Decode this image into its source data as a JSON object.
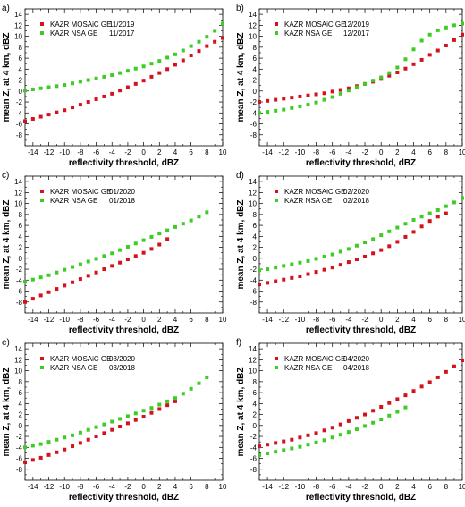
{
  "chart_data": [
    {
      "type": "scatter",
      "panel_label": "a)",
      "xlabel": "reflectivity threshold, dBZ",
      "ylabel": "mean Z, at 4 km, dBZ",
      "xlim": [
        -15,
        10
      ],
      "ylim": [
        -10,
        15
      ],
      "xticks": [
        "-14",
        "-12",
        "-10",
        "-8",
        "-6",
        "-4",
        "-2",
        "0",
        "2",
        "4",
        "6",
        "8",
        "10"
      ],
      "yticks": [
        "-8",
        "-6",
        "-4",
        "-2",
        "0",
        "2",
        "4",
        "6",
        "8",
        "10",
        "12",
        "14"
      ],
      "legend_position": "top-left",
      "series": [
        {
          "name": "KAZR MOSAiC GE",
          "period": "11/2019",
          "color": "#d4121d",
          "x": [
            -15,
            -14,
            -13,
            -12,
            -11,
            -10,
            -9,
            -8,
            -7,
            -6,
            -5,
            -4,
            -3,
            -2,
            -1,
            0,
            1,
            2,
            3,
            4,
            5,
            6,
            7,
            8,
            9,
            10
          ],
          "y": [
            -5.5,
            -5.1,
            -4.7,
            -4.3,
            -3.9,
            -3.5,
            -3.0,
            -2.5,
            -2.0,
            -1.5,
            -1.0,
            -0.5,
            0.1,
            0.7,
            1.3,
            1.9,
            2.6,
            3.3,
            4.0,
            4.8,
            5.6,
            6.5,
            7.3,
            8.2,
            9.0,
            9.7
          ]
        },
        {
          "name": "KAZR NSA  GE",
          "period": "11/2017",
          "color": "#3ccd24",
          "x": [
            -15,
            -14,
            -13,
            -12,
            -11,
            -10,
            -9,
            -8,
            -7,
            -6,
            -5,
            -4,
            -3,
            -2,
            -1,
            0,
            1,
            2,
            3,
            4,
            5,
            6,
            7,
            8,
            9,
            10
          ],
          "y": [
            0.1,
            0.3,
            0.5,
            0.7,
            0.9,
            1.1,
            1.4,
            1.7,
            2.0,
            2.3,
            2.6,
            2.9,
            3.3,
            3.7,
            4.1,
            4.5,
            5.0,
            5.5,
            6.1,
            6.7,
            7.4,
            8.2,
            9.0,
            9.9,
            11.0,
            12.3
          ]
        }
      ]
    },
    {
      "type": "scatter",
      "panel_label": "b)",
      "xlabel": "reflectivity threshold, dBZ",
      "ylabel": "mean Z, at 4 km, dBZ",
      "xlim": [
        -15,
        10
      ],
      "ylim": [
        -10,
        15
      ],
      "xticks": [
        "-14",
        "-12",
        "-10",
        "-8",
        "-6",
        "-4",
        "-2",
        "0",
        "2",
        "4",
        "6",
        "8",
        "10"
      ],
      "yticks": [
        "-8",
        "-6",
        "-4",
        "-2",
        "0",
        "2",
        "4",
        "6",
        "8",
        "10",
        "12",
        "14"
      ],
      "legend_position": "top-left",
      "series": [
        {
          "name": "KAZR MOSAiC GE",
          "period": "12/2019",
          "color": "#d4121d",
          "x": [
            -15,
            -14,
            -13,
            -12,
            -11,
            -10,
            -9,
            -8,
            -7,
            -6,
            -5,
            -4,
            -3,
            -2,
            -1,
            0,
            1,
            2,
            3,
            4,
            5,
            6,
            7,
            8,
            9,
            10
          ],
          "y": [
            -2.0,
            -1.8,
            -1.6,
            -1.4,
            -1.2,
            -1.0,
            -0.8,
            -0.6,
            -0.4,
            -0.1,
            0.2,
            0.5,
            0.9,
            1.3,
            1.7,
            2.2,
            2.8,
            3.4,
            4.1,
            4.9,
            5.7,
            6.6,
            7.4,
            8.3,
            9.3,
            10.3
          ]
        },
        {
          "name": "KAZR NSA  GE",
          "period": "12/2017",
          "color": "#3ccd24",
          "x": [
            -15,
            -14,
            -13,
            -12,
            -11,
            -10,
            -9,
            -8,
            -7,
            -6,
            -5,
            -4,
            -3,
            -2,
            -1,
            0,
            1,
            2,
            3,
            4,
            5,
            6,
            7,
            8,
            9,
            10
          ],
          "y": [
            -4.0,
            -3.8,
            -3.6,
            -3.4,
            -3.1,
            -2.8,
            -2.5,
            -2.1,
            -1.6,
            -1.1,
            -0.5,
            0.1,
            0.7,
            1.3,
            1.9,
            2.5,
            3.3,
            4.3,
            5.8,
            7.6,
            9.2,
            10.3,
            11.1,
            11.6,
            12.0,
            12.3
          ]
        }
      ]
    },
    {
      "type": "scatter",
      "panel_label": "c)",
      "xlabel": "reflectivity threshold, dBZ",
      "ylabel": "mean Z, at 4 km, dBZ",
      "xlim": [
        -15,
        10
      ],
      "ylim": [
        -10,
        15
      ],
      "xticks": [
        "-14",
        "-12",
        "-10",
        "-8",
        "-6",
        "-4",
        "-2",
        "0",
        "2",
        "4",
        "6",
        "8",
        "10"
      ],
      "yticks": [
        "-8",
        "-6",
        "-4",
        "-2",
        "0",
        "2",
        "4",
        "6",
        "8",
        "10",
        "12",
        "14"
      ],
      "legend_position": "top-left",
      "series": [
        {
          "name": "KAZR MOSAiC GE",
          "period": "01/2020",
          "color": "#d4121d",
          "x": [
            -15,
            -14,
            -13,
            -12,
            -11,
            -10,
            -9,
            -8,
            -7,
            -6,
            -5,
            -4,
            -3,
            -2,
            -1,
            0,
            1,
            2,
            3
          ],
          "y": [
            -8.0,
            -7.4,
            -6.8,
            -6.2,
            -5.6,
            -5.0,
            -4.4,
            -3.8,
            -3.2,
            -2.6,
            -2.0,
            -1.4,
            -0.8,
            -0.2,
            0.4,
            1.0,
            1.7,
            2.5,
            3.5
          ]
        },
        {
          "name": "KAZR NSA  GE",
          "period": "01/2018",
          "color": "#3ccd24",
          "x": [
            -15,
            -14,
            -13,
            -12,
            -11,
            -10,
            -9,
            -8,
            -7,
            -6,
            -5,
            -4,
            -3,
            -2,
            -1,
            0,
            1,
            2,
            3,
            4,
            5,
            6,
            7,
            8
          ],
          "y": [
            -4.3,
            -3.9,
            -3.5,
            -3.1,
            -2.6,
            -2.1,
            -1.6,
            -1.1,
            -0.6,
            -0.1,
            0.4,
            0.9,
            1.5,
            2.1,
            2.7,
            3.3,
            3.9,
            4.5,
            5.1,
            5.7,
            6.3,
            6.9,
            7.6,
            8.4
          ]
        }
      ]
    },
    {
      "type": "scatter",
      "panel_label": "d)",
      "xlabel": "reflectivity threshold, dBZ",
      "ylabel": "mean Z, at 4 km, dBZ",
      "xlim": [
        -15,
        10
      ],
      "ylim": [
        -10,
        15
      ],
      "xticks": [
        "-14",
        "-12",
        "-10",
        "-8",
        "-6",
        "-4",
        "-2",
        "0",
        "2",
        "4",
        "6",
        "8",
        "10"
      ],
      "yticks": [
        "-8",
        "-6",
        "-4",
        "-2",
        "0",
        "2",
        "4",
        "6",
        "8",
        "10",
        "12",
        "14"
      ],
      "legend_position": "top-left",
      "series": [
        {
          "name": "KAZR MOSAiC GE",
          "period": "02/2020",
          "color": "#d4121d",
          "x": [
            -15,
            -14,
            -13,
            -12,
            -11,
            -10,
            -9,
            -8,
            -7,
            -6,
            -5,
            -4,
            -3,
            -2,
            -1,
            0,
            1,
            2,
            3,
            4,
            5,
            6,
            7,
            8
          ],
          "y": [
            -4.8,
            -4.5,
            -4.2,
            -3.9,
            -3.6,
            -3.3,
            -2.9,
            -2.5,
            -2.1,
            -1.7,
            -1.2,
            -0.7,
            -0.2,
            0.3,
            0.9,
            1.5,
            2.2,
            3.0,
            3.9,
            4.8,
            5.8,
            6.8,
            7.6,
            8.2
          ]
        },
        {
          "name": "KAZR NSA  GE",
          "period": "02/2018",
          "color": "#3ccd24",
          "x": [
            -15,
            -14,
            -13,
            -12,
            -11,
            -10,
            -9,
            -8,
            -7,
            -6,
            -5,
            -4,
            -3,
            -2,
            -1,
            0,
            1,
            2,
            3,
            4,
            5,
            6,
            7,
            8,
            9,
            10
          ],
          "y": [
            -2.2,
            -2.0,
            -1.7,
            -1.4,
            -1.1,
            -0.8,
            -0.5,
            -0.1,
            0.3,
            0.7,
            1.2,
            1.7,
            2.3,
            2.9,
            3.5,
            4.2,
            4.9,
            5.6,
            6.3,
            7.0,
            7.6,
            8.2,
            8.8,
            9.5,
            10.2,
            11.0
          ]
        }
      ]
    },
    {
      "type": "scatter",
      "panel_label": "e)",
      "xlabel": "reflectivity threshold, dBZ",
      "ylabel": "mean Z, at 4 km, dBZ",
      "xlim": [
        -15,
        10
      ],
      "ylim": [
        -10,
        15
      ],
      "xticks": [
        "-14",
        "-12",
        "-10",
        "-8",
        "-6",
        "-4",
        "-2",
        "0",
        "2",
        "4",
        "6",
        "8",
        "10"
      ],
      "yticks": [
        "-8",
        "-6",
        "-4",
        "-2",
        "0",
        "2",
        "4",
        "6",
        "8",
        "10",
        "12",
        "14"
      ],
      "legend_position": "top-left",
      "series": [
        {
          "name": "KAZR MOSAiC GE",
          "period": "03/2020",
          "color": "#d4121d",
          "x": [
            -15,
            -14,
            -13,
            -12,
            -11,
            -10,
            -9,
            -8,
            -7,
            -6,
            -5,
            -4,
            -3,
            -2,
            -1,
            0,
            1,
            2,
            3,
            4
          ],
          "y": [
            -6.7,
            -6.3,
            -5.9,
            -5.4,
            -4.9,
            -4.4,
            -3.8,
            -3.2,
            -2.6,
            -2.0,
            -1.4,
            -0.8,
            -0.2,
            0.4,
            1.0,
            1.6,
            2.3,
            3.0,
            3.7,
            4.4
          ]
        },
        {
          "name": "KAZR NSA  GE",
          "period": "03/2018",
          "color": "#3ccd24",
          "x": [
            -15,
            -14,
            -13,
            -12,
            -11,
            -10,
            -9,
            -8,
            -7,
            -6,
            -5,
            -4,
            -3,
            -2,
            -1,
            0,
            1,
            2,
            3,
            4,
            5,
            6,
            7,
            8
          ],
          "y": [
            -4.0,
            -3.7,
            -3.4,
            -3.0,
            -2.6,
            -2.2,
            -1.8,
            -1.3,
            -0.8,
            -0.3,
            0.2,
            0.7,
            1.2,
            1.7,
            2.2,
            2.7,
            3.2,
            3.8,
            4.4,
            5.0,
            5.8,
            6.7,
            7.7,
            8.8
          ]
        }
      ]
    },
    {
      "type": "scatter",
      "panel_label": "f)",
      "xlabel": "reflectivity threshold, dBZ",
      "ylabel": "mean Z, at 4 km, dBZ",
      "xlim": [
        -15,
        10
      ],
      "ylim": [
        -10,
        15
      ],
      "xticks": [
        "-14",
        "-12",
        "-10",
        "-8",
        "-6",
        "-4",
        "-2",
        "0",
        "2",
        "4",
        "6",
        "8",
        "10"
      ],
      "yticks": [
        "-8",
        "-6",
        "-4",
        "-2",
        "0",
        "2",
        "4",
        "6",
        "8",
        "10",
        "12",
        "14"
      ],
      "legend_position": "top-left",
      "series": [
        {
          "name": "KAZR MOSAiC GE",
          "period": "04/2020",
          "color": "#d4121d",
          "x": [
            -15,
            -14,
            -13,
            -12,
            -11,
            -10,
            -9,
            -8,
            -7,
            -6,
            -5,
            -4,
            -3,
            -2,
            -1,
            0,
            1,
            2,
            3,
            4,
            5,
            6,
            7,
            8,
            9,
            10
          ],
          "y": [
            -3.8,
            -3.5,
            -3.2,
            -2.9,
            -2.6,
            -2.2,
            -1.8,
            -1.4,
            -0.9,
            -0.4,
            0.2,
            0.8,
            1.4,
            2.0,
            2.7,
            3.4,
            4.1,
            4.8,
            5.5,
            6.3,
            7.1,
            7.9,
            8.8,
            9.8,
            10.8,
            11.9
          ]
        },
        {
          "name": "KAZR NSA  GE",
          "period": "04/2018",
          "color": "#3ccd24",
          "x": [
            -15,
            -14,
            -13,
            -12,
            -11,
            -10,
            -9,
            -8,
            -7,
            -6,
            -5,
            -4,
            -3,
            -2,
            -1,
            0,
            1,
            2,
            3
          ],
          "y": [
            -5.4,
            -5.1,
            -4.8,
            -4.5,
            -4.2,
            -3.9,
            -3.5,
            -3.1,
            -2.7,
            -2.2,
            -1.7,
            -1.2,
            -0.7,
            -0.1,
            0.5,
            1.1,
            1.8,
            2.5,
            3.3
          ]
        }
      ]
    }
  ]
}
